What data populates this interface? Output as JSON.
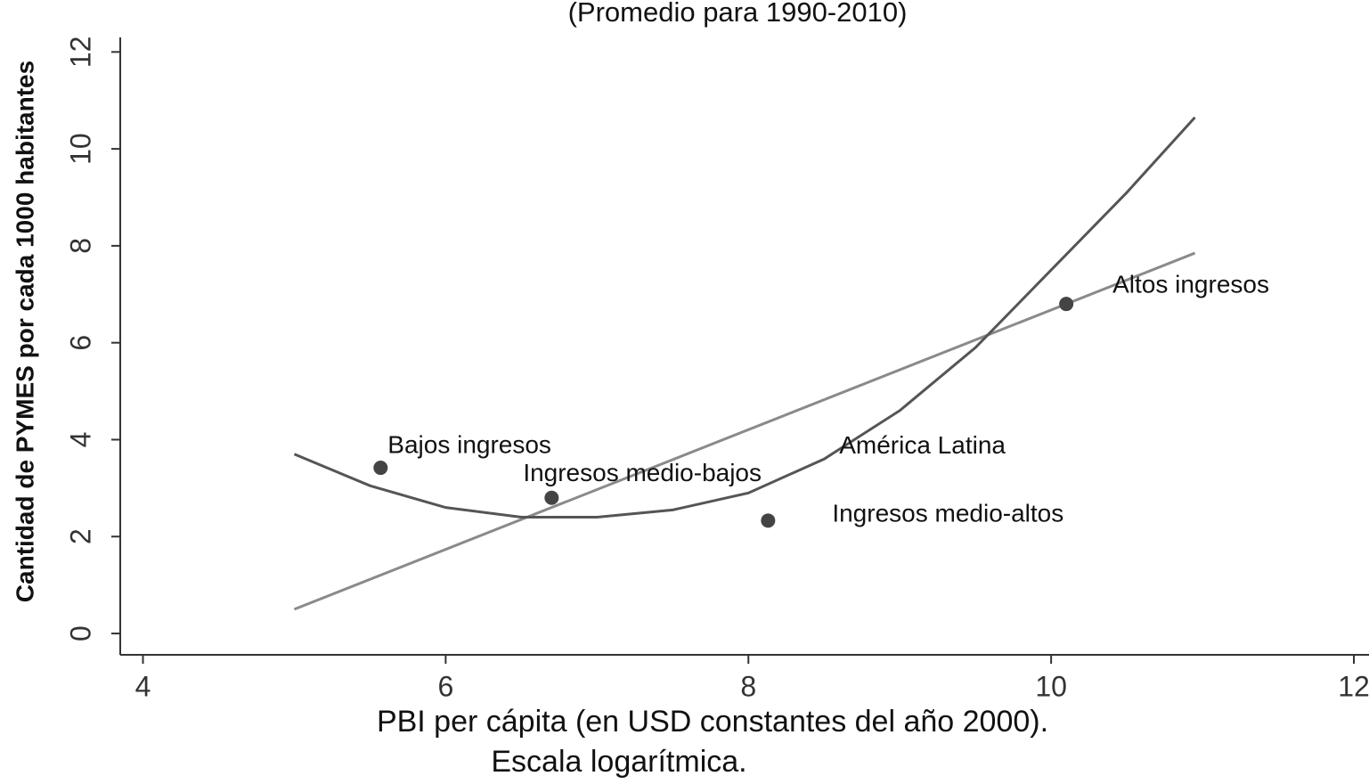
{
  "chart_data": {
    "type": "scatter",
    "title": "(Promedio para 1990-2010)",
    "x_label": [
      "PBI per cápita (en USD constantes del año 2000).",
      "Escala logarítmica."
    ],
    "y_label": "Cantidad de PYMES por cada 1000 habitantes",
    "xlim": [
      3.85,
      12.1
    ],
    "ylim": [
      -0.44,
      12.3
    ],
    "xticks": [
      4,
      6,
      8,
      10,
      12
    ],
    "yticks": [
      0,
      2,
      4,
      6,
      8,
      10,
      12
    ],
    "points": {
      "color": "#444444",
      "labels": [
        "Bajos ingresos",
        "Ingresos medio-bajos",
        "Ingresos medio-altos",
        "Altos ingresos"
      ],
      "x": [
        5.57,
        6.7,
        8.13,
        10.1
      ],
      "y": [
        3.42,
        2.8,
        2.33,
        6.8
      ]
    },
    "lines": [
      {
        "color": "#8a8a8a",
        "x": [
          5,
          10.95
        ],
        "y": [
          0.5,
          7.85
        ]
      },
      {
        "color": "#555555",
        "x": [
          5,
          5.5,
          6,
          6.5,
          7,
          7.5,
          8,
          8.5,
          9,
          9.5,
          10,
          10.5,
          10.95
        ],
        "y": [
          3.7,
          3.05,
          2.6,
          2.4,
          2.4,
          2.55,
          2.9,
          3.6,
          4.6,
          5.9,
          7.5,
          9.1,
          10.65
        ]
      }
    ],
    "annotations": [
      {
        "text": "América Latina",
        "x": 8.6,
        "y": 3.85
      }
    ]
  }
}
